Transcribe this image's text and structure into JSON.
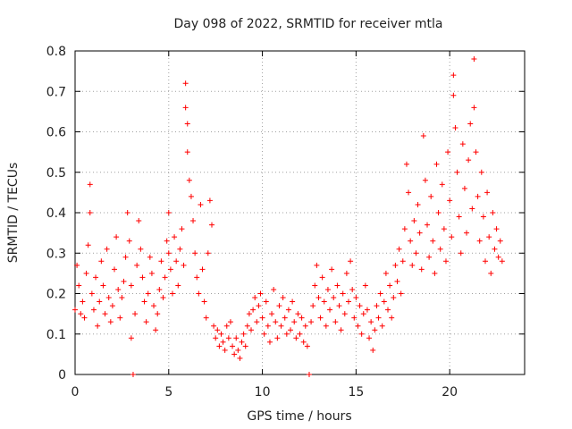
{
  "chart_data": {
    "type": "scatter",
    "title": "Day 098 of 2022, SRMTID for receiver mtla",
    "xlabel": "GPS time / hours",
    "ylabel": "SRMTID / TECUs",
    "xlim": [
      0,
      24
    ],
    "ylim": [
      0,
      0.8
    ],
    "xticks": [
      0,
      5,
      10,
      15,
      20
    ],
    "xtick_labels": [
      "0",
      "5",
      "10",
      "15",
      "20"
    ],
    "yticks": [
      0,
      0.1,
      0.2,
      0.3,
      0.4,
      0.5,
      0.6,
      0.7,
      0.8
    ],
    "ytick_labels": [
      "0",
      "0.1",
      "0.2",
      "0.3",
      "0.4",
      "0.5",
      "0.6",
      "0.7",
      "0.8"
    ],
    "grid": true,
    "marker": "+",
    "series": [
      {
        "name": "SRMTID",
        "color": "#ff0000",
        "points": [
          [
            0.0,
            0.16
          ],
          [
            0.1,
            0.27
          ],
          [
            0.2,
            0.22
          ],
          [
            0.3,
            0.15
          ],
          [
            0.4,
            0.18
          ],
          [
            0.5,
            0.14
          ],
          [
            0.6,
            0.25
          ],
          [
            0.7,
            0.32
          ],
          [
            0.8,
            0.47
          ],
          [
            0.8,
            0.4
          ],
          [
            0.9,
            0.2
          ],
          [
            1.0,
            0.16
          ],
          [
            1.1,
            0.24
          ],
          [
            1.2,
            0.12
          ],
          [
            1.3,
            0.18
          ],
          [
            1.4,
            0.28
          ],
          [
            1.5,
            0.22
          ],
          [
            1.6,
            0.15
          ],
          [
            1.7,
            0.31
          ],
          [
            1.8,
            0.19
          ],
          [
            1.9,
            0.13
          ],
          [
            2.0,
            0.17
          ],
          [
            2.1,
            0.26
          ],
          [
            2.2,
            0.34
          ],
          [
            2.3,
            0.21
          ],
          [
            2.4,
            0.14
          ],
          [
            2.5,
            0.19
          ],
          [
            2.6,
            0.23
          ],
          [
            2.7,
            0.29
          ],
          [
            2.8,
            0.4
          ],
          [
            2.9,
            0.33
          ],
          [
            3.0,
            0.22
          ],
          [
            3.0,
            0.09
          ],
          [
            3.1,
            0.0
          ],
          [
            3.2,
            0.15
          ],
          [
            3.3,
            0.27
          ],
          [
            3.4,
            0.38
          ],
          [
            3.5,
            0.31
          ],
          [
            3.6,
            0.24
          ],
          [
            3.7,
            0.18
          ],
          [
            3.8,
            0.13
          ],
          [
            3.9,
            0.2
          ],
          [
            4.0,
            0.29
          ],
          [
            4.1,
            0.25
          ],
          [
            4.2,
            0.17
          ],
          [
            4.3,
            0.11
          ],
          [
            4.4,
            0.15
          ],
          [
            4.5,
            0.21
          ],
          [
            4.6,
            0.28
          ],
          [
            4.7,
            0.19
          ],
          [
            4.8,
            0.24
          ],
          [
            4.9,
            0.33
          ],
          [
            5.0,
            0.3
          ],
          [
            5.0,
            0.4
          ],
          [
            5.1,
            0.26
          ],
          [
            5.2,
            0.2
          ],
          [
            5.3,
            0.34
          ],
          [
            5.4,
            0.28
          ],
          [
            5.5,
            0.22
          ],
          [
            5.6,
            0.31
          ],
          [
            5.7,
            0.36
          ],
          [
            5.8,
            0.27
          ],
          [
            5.9,
            0.72
          ],
          [
            5.9,
            0.66
          ],
          [
            6.0,
            0.62
          ],
          [
            6.0,
            0.55
          ],
          [
            6.1,
            0.48
          ],
          [
            6.2,
            0.44
          ],
          [
            6.3,
            0.38
          ],
          [
            6.4,
            0.3
          ],
          [
            6.5,
            0.24
          ],
          [
            6.6,
            0.2
          ],
          [
            6.7,
            0.42
          ],
          [
            6.8,
            0.26
          ],
          [
            6.9,
            0.18
          ],
          [
            7.0,
            0.14
          ],
          [
            7.1,
            0.3
          ],
          [
            7.2,
            0.43
          ],
          [
            7.3,
            0.37
          ],
          [
            7.4,
            0.12
          ],
          [
            7.5,
            0.09
          ],
          [
            7.6,
            0.11
          ],
          [
            7.7,
            0.07
          ],
          [
            7.8,
            0.1
          ],
          [
            7.9,
            0.08
          ],
          [
            8.0,
            0.06
          ],
          [
            8.1,
            0.12
          ],
          [
            8.2,
            0.09
          ],
          [
            8.3,
            0.13
          ],
          [
            8.4,
            0.07
          ],
          [
            8.5,
            0.05
          ],
          [
            8.6,
            0.09
          ],
          [
            8.7,
            0.06
          ],
          [
            8.8,
            0.04
          ],
          [
            8.9,
            0.08
          ],
          [
            9.0,
            0.1
          ],
          [
            9.1,
            0.07
          ],
          [
            9.2,
            0.12
          ],
          [
            9.3,
            0.15
          ],
          [
            9.4,
            0.11
          ],
          [
            9.5,
            0.16
          ],
          [
            9.6,
            0.19
          ],
          [
            9.7,
            0.13
          ],
          [
            9.8,
            0.17
          ],
          [
            9.9,
            0.2
          ],
          [
            10.0,
            0.14
          ],
          [
            10.1,
            0.1
          ],
          [
            10.2,
            0.18
          ],
          [
            10.3,
            0.12
          ],
          [
            10.4,
            0.08
          ],
          [
            10.5,
            0.15
          ],
          [
            10.6,
            0.21
          ],
          [
            10.7,
            0.13
          ],
          [
            10.8,
            0.09
          ],
          [
            10.9,
            0.17
          ],
          [
            11.0,
            0.12
          ],
          [
            11.1,
            0.19
          ],
          [
            11.2,
            0.14
          ],
          [
            11.3,
            0.1
          ],
          [
            11.4,
            0.16
          ],
          [
            11.5,
            0.11
          ],
          [
            11.6,
            0.18
          ],
          [
            11.7,
            0.13
          ],
          [
            11.8,
            0.09
          ],
          [
            11.9,
            0.15
          ],
          [
            12.0,
            0.1
          ],
          [
            12.1,
            0.14
          ],
          [
            12.2,
            0.08
          ],
          [
            12.3,
            0.12
          ],
          [
            12.4,
            0.07
          ],
          [
            12.5,
            0.0
          ],
          [
            12.6,
            0.13
          ],
          [
            12.7,
            0.17
          ],
          [
            12.8,
            0.22
          ],
          [
            12.9,
            0.27
          ],
          [
            13.0,
            0.19
          ],
          [
            13.1,
            0.14
          ],
          [
            13.2,
            0.24
          ],
          [
            13.3,
            0.18
          ],
          [
            13.4,
            0.12
          ],
          [
            13.5,
            0.21
          ],
          [
            13.6,
            0.16
          ],
          [
            13.7,
            0.26
          ],
          [
            13.8,
            0.19
          ],
          [
            13.9,
            0.13
          ],
          [
            14.0,
            0.22
          ],
          [
            14.1,
            0.17
          ],
          [
            14.2,
            0.11
          ],
          [
            14.3,
            0.2
          ],
          [
            14.4,
            0.15
          ],
          [
            14.5,
            0.25
          ],
          [
            14.6,
            0.18
          ],
          [
            14.7,
            0.28
          ],
          [
            14.8,
            0.21
          ],
          [
            14.9,
            0.14
          ],
          [
            15.0,
            0.19
          ],
          [
            15.1,
            0.12
          ],
          [
            15.2,
            0.17
          ],
          [
            15.3,
            0.1
          ],
          [
            15.4,
            0.15
          ],
          [
            15.5,
            0.22
          ],
          [
            15.6,
            0.16
          ],
          [
            15.7,
            0.09
          ],
          [
            15.8,
            0.13
          ],
          [
            15.9,
            0.06
          ],
          [
            16.0,
            0.11
          ],
          [
            16.1,
            0.17
          ],
          [
            16.2,
            0.14
          ],
          [
            16.3,
            0.2
          ],
          [
            16.4,
            0.12
          ],
          [
            16.5,
            0.18
          ],
          [
            16.6,
            0.25
          ],
          [
            16.7,
            0.16
          ],
          [
            16.8,
            0.22
          ],
          [
            16.9,
            0.14
          ],
          [
            17.0,
            0.19
          ],
          [
            17.1,
            0.27
          ],
          [
            17.2,
            0.23
          ],
          [
            17.3,
            0.31
          ],
          [
            17.4,
            0.2
          ],
          [
            17.5,
            0.28
          ],
          [
            17.6,
            0.36
          ],
          [
            17.7,
            0.52
          ],
          [
            17.8,
            0.45
          ],
          [
            17.9,
            0.33
          ],
          [
            18.0,
            0.27
          ],
          [
            18.1,
            0.38
          ],
          [
            18.2,
            0.3
          ],
          [
            18.3,
            0.42
          ],
          [
            18.4,
            0.35
          ],
          [
            18.5,
            0.26
          ],
          [
            18.6,
            0.59
          ],
          [
            18.7,
            0.48
          ],
          [
            18.8,
            0.37
          ],
          [
            18.9,
            0.29
          ],
          [
            19.0,
            0.44
          ],
          [
            19.1,
            0.33
          ],
          [
            19.2,
            0.25
          ],
          [
            19.3,
            0.52
          ],
          [
            19.4,
            0.4
          ],
          [
            19.5,
            0.31
          ],
          [
            19.6,
            0.47
          ],
          [
            19.7,
            0.36
          ],
          [
            19.8,
            0.28
          ],
          [
            19.9,
            0.55
          ],
          [
            20.0,
            0.43
          ],
          [
            20.1,
            0.34
          ],
          [
            20.2,
            0.69
          ],
          [
            20.2,
            0.74
          ],
          [
            20.3,
            0.61
          ],
          [
            20.4,
            0.5
          ],
          [
            20.5,
            0.39
          ],
          [
            20.6,
            0.3
          ],
          [
            20.7,
            0.57
          ],
          [
            20.8,
            0.46
          ],
          [
            20.9,
            0.35
          ],
          [
            21.0,
            0.53
          ],
          [
            21.1,
            0.62
          ],
          [
            21.2,
            0.41
          ],
          [
            21.3,
            0.66
          ],
          [
            21.3,
            0.78
          ],
          [
            21.4,
            0.55
          ],
          [
            21.5,
            0.44
          ],
          [
            21.6,
            0.33
          ],
          [
            21.7,
            0.5
          ],
          [
            21.8,
            0.39
          ],
          [
            21.9,
            0.28
          ],
          [
            22.0,
            0.45
          ],
          [
            22.1,
            0.34
          ],
          [
            22.2,
            0.25
          ],
          [
            22.3,
            0.4
          ],
          [
            22.4,
            0.31
          ],
          [
            22.5,
            0.36
          ],
          [
            22.6,
            0.29
          ],
          [
            22.7,
            0.33
          ],
          [
            22.8,
            0.28
          ]
        ]
      }
    ]
  }
}
